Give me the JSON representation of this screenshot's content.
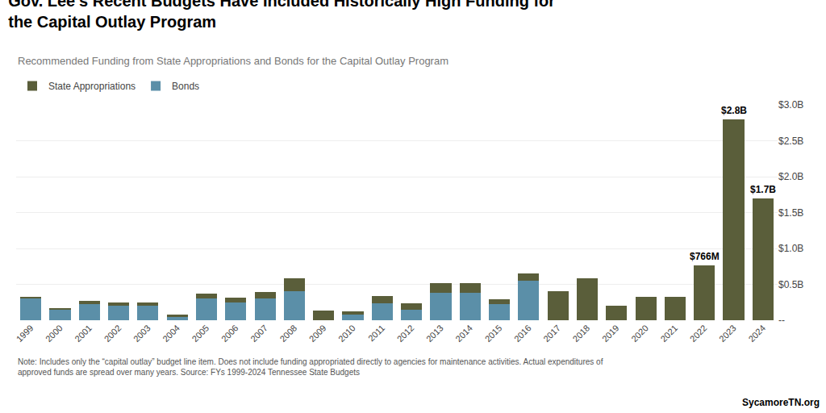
{
  "chart_data": {
    "type": "bar",
    "stacked": true,
    "title": "Gov. Lee’s Recent Budgets Have Included Historically High Funding for\nthe Capital Outlay Program",
    "subtitle": "Recommended Funding from State Appropriations and Bonds for the Capital Outlay Program",
    "note": "Note: Includes only the “capital outlay” budget line item. Does not include funding appropriated directly to agencies for maintenance activities. Actual expenditures of\napproved funds are spread over many years. Source: FYs 1999-2024 Tennessee State Budgets",
    "source": "SycamoreTN.org",
    "categories": [
      1999,
      2000,
      2001,
      2002,
      2003,
      2004,
      2005,
      2006,
      2007,
      2008,
      2009,
      2010,
      2011,
      2012,
      2013,
      2014,
      2015,
      2016,
      2017,
      2018,
      2019,
      2020,
      2021,
      2022,
      2023,
      2024
    ],
    "series": [
      {
        "name": "Bonds",
        "color": "#5b8fa8",
        "values": [
          0.3,
          0.15,
          0.22,
          0.2,
          0.2,
          0.05,
          0.3,
          0.25,
          0.3,
          0.4,
          0.0,
          0.08,
          0.24,
          0.15,
          0.38,
          0.38,
          0.22,
          0.55,
          0.0,
          0.0,
          0.0,
          0.0,
          0.0,
          0.0,
          0.0,
          0.0
        ]
      },
      {
        "name": "State Appropriations",
        "color": "#5a5e3a",
        "values": [
          0.03,
          0.02,
          0.05,
          0.05,
          0.05,
          0.03,
          0.07,
          0.07,
          0.09,
          0.18,
          0.14,
          0.04,
          0.1,
          0.09,
          0.14,
          0.14,
          0.07,
          0.1,
          0.4,
          0.58,
          0.2,
          0.33,
          0.33,
          0.766,
          2.8,
          1.7
        ]
      }
    ],
    "annotations": [
      {
        "x": 2022,
        "y": 0.766,
        "text": "$766M"
      },
      {
        "x": 2023,
        "y": 2.8,
        "text": "$2.8B"
      },
      {
        "x": 2024,
        "y": 1.7,
        "text": "$1.7B"
      }
    ],
    "ylim": [
      0,
      3.0
    ],
    "yticks": [
      {
        "value": 0.0,
        "label": "--"
      },
      {
        "value": 0.5,
        "label": "$0.5B"
      },
      {
        "value": 1.0,
        "label": "$1.0B"
      },
      {
        "value": 1.5,
        "label": "$1.5B"
      },
      {
        "value": 2.0,
        "label": "$2.0B"
      },
      {
        "value": 2.5,
        "label": "$2.5B"
      },
      {
        "value": 3.0,
        "label": "$3.0B"
      }
    ],
    "grid": true,
    "legend": "upper left"
  }
}
